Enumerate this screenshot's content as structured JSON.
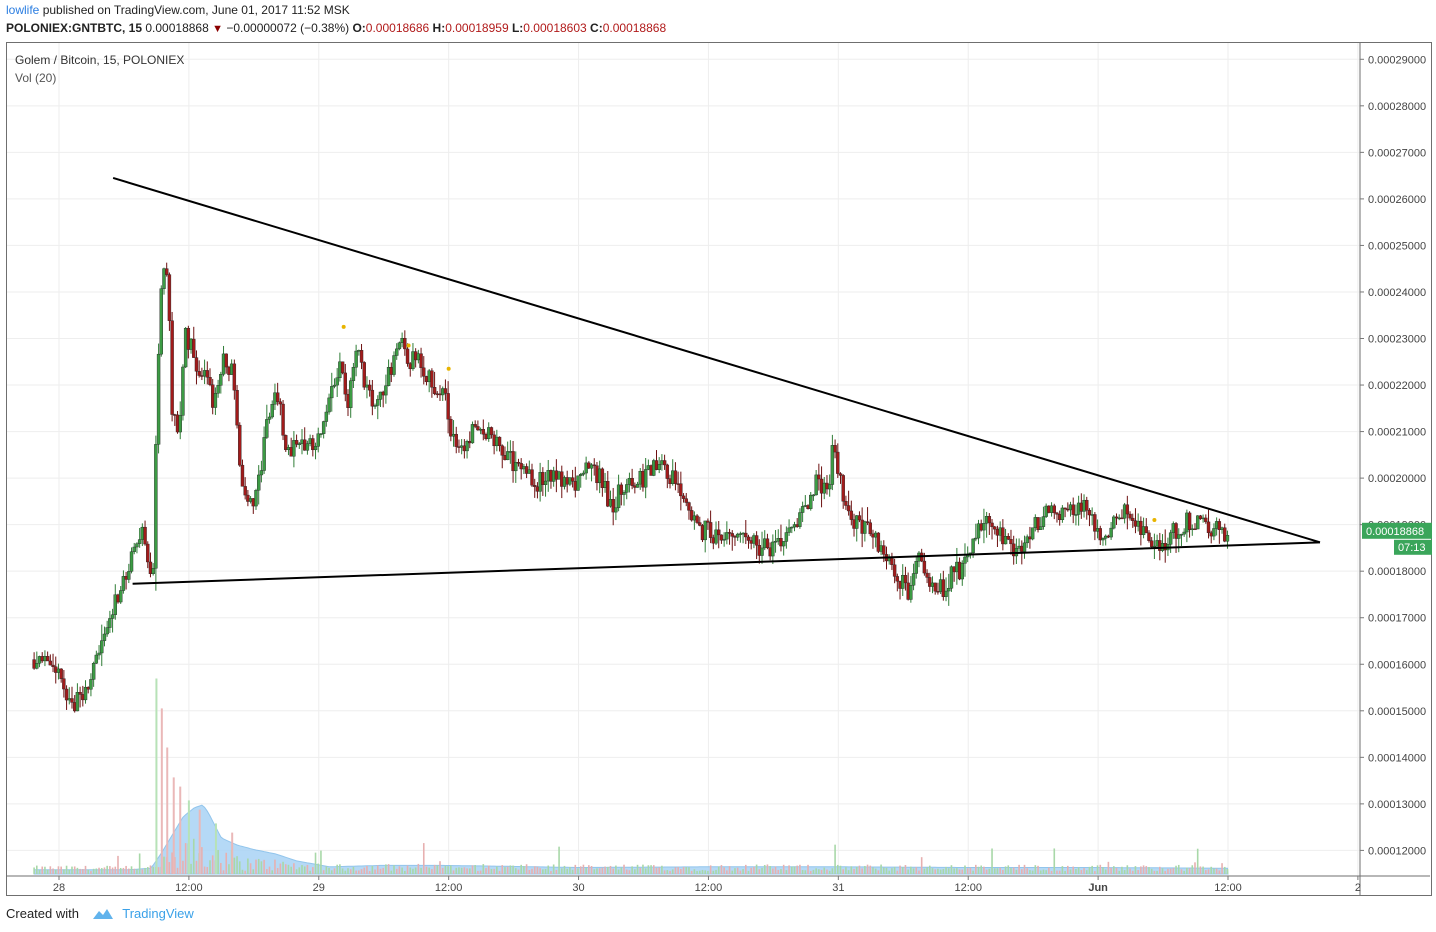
{
  "header": {
    "author": "lowlife",
    "published": "published on TradingView.com, June 01, 2017 11:52 MSK",
    "symbol": "POLONIEX:GNTBTC, 15",
    "last": "0.00018868",
    "change": "−0.00000072 (−0.38%)",
    "o_label": "O:",
    "o": "0.00018686",
    "h_label": "H:",
    "h": "0.00018959",
    "l_label": "L:",
    "l": "0.00018603",
    "c_label": "C:",
    "c": "0.00018868"
  },
  "footer": {
    "created_with": "Created with",
    "brand": "TradingView"
  },
  "chart_data": {
    "type": "candlestick",
    "title": "Golem / Bitcoin, 15, POLONIEX",
    "indicator": "Vol (20)",
    "y_ticks": [
      "0.00012000",
      "0.00013000",
      "0.00014000",
      "0.00015000",
      "0.00016000",
      "0.00017000",
      "0.00018000",
      "0.00019000",
      "0.00020000",
      "0.00021000",
      "0.00022000",
      "0.00023000",
      "0.00024000",
      "0.00025000",
      "0.00026000",
      "0.00027000",
      "0.00028000",
      "0.00029000"
    ],
    "x_ticks": [
      {
        "label": "28",
        "t": 0
      },
      {
        "label": "12:00",
        "t": 12
      },
      {
        "label": "29",
        "t": 24
      },
      {
        "label": "12:00",
        "t": 36
      },
      {
        "label": "30",
        "t": 48
      },
      {
        "label": "12:00",
        "t": 60
      },
      {
        "label": "31",
        "t": 72
      },
      {
        "label": "12:00",
        "t": 84
      },
      {
        "label": "Jun",
        "t": 96
      },
      {
        "label": "12:00",
        "t": 108
      },
      {
        "label": "2",
        "t": 120
      }
    ],
    "ylim": [
      0.0001145,
      0.0002935
    ],
    "price_keypoints": [
      [
        -2.3,
        0.000161
      ],
      [
        -1.0,
        0.000159
      ],
      [
        0,
        0.000158
      ],
      [
        0.5,
        0.000153
      ],
      [
        1.2,
        0.0001505
      ],
      [
        1.8,
        0.000152
      ],
      [
        2.5,
        0.000156
      ],
      [
        3.5,
        0.00016
      ],
      [
        4.5,
        0.000168
      ],
      [
        5.5,
        0.000176
      ],
      [
        6.5,
        0.00018
      ],
      [
        7.3,
        0.000188
      ],
      [
        8.0,
        0.000187
      ],
      [
        8.4,
        0.00018
      ],
      [
        8.8,
        0.000186
      ],
      [
        9.2,
        0.00023
      ],
      [
        9.6,
        0.00025
      ],
      [
        10.0,
        0.00024
      ],
      [
        10.5,
        0.000215
      ],
      [
        11.0,
        0.000205
      ],
      [
        11.5,
        0.000225
      ],
      [
        12.0,
        0.000232
      ],
      [
        12.8,
        0.00022
      ],
      [
        13.5,
        0.000225
      ],
      [
        14.3,
        0.000215
      ],
      [
        15.0,
        0.000225
      ],
      [
        16.0,
        0.000223
      ],
      [
        16.8,
        0.0002
      ],
      [
        17.8,
        0.000195
      ],
      [
        18.5,
        0.0002
      ],
      [
        19.5,
        0.000215
      ],
      [
        20.2,
        0.000218
      ],
      [
        21.0,
        0.000205
      ],
      [
        22.0,
        0.000208
      ],
      [
        23.0,
        0.000208
      ],
      [
        24.0,
        0.000208
      ],
      [
        25.0,
        0.00022
      ],
      [
        26.0,
        0.000223
      ],
      [
        26.7,
        0.000215
      ],
      [
        27.5,
        0.000228
      ],
      [
        28.5,
        0.000218
      ],
      [
        29.5,
        0.000215
      ],
      [
        30.5,
        0.000223
      ],
      [
        31.5,
        0.00023
      ],
      [
        32.5,
        0.000225
      ],
      [
        33.5,
        0.000225
      ],
      [
        34.5,
        0.00022
      ],
      [
        35.5,
        0.00022
      ],
      [
        36.3,
        0.00021
      ],
      [
        37.0,
        0.000205
      ],
      [
        38.0,
        0.00021
      ],
      [
        39.0,
        0.000212
      ],
      [
        40.0,
        0.000208
      ],
      [
        41.0,
        0.000205
      ],
      [
        42.0,
        0.000203
      ],
      [
        43.0,
        0.000204
      ],
      [
        44.0,
        0.000199
      ],
      [
        45.0,
        0.000201
      ],
      [
        46.0,
        0.000199
      ],
      [
        47.0,
        0.0002
      ],
      [
        48.0,
        0.000199
      ],
      [
        49.0,
        0.000203
      ],
      [
        50.0,
        0.0002
      ],
      [
        51.0,
        0.000194
      ],
      [
        52.0,
        0.000198
      ],
      [
        53.0,
        0.000199
      ],
      [
        54.0,
        0.0002
      ],
      [
        55.0,
        0.000203
      ],
      [
        56.0,
        0.000202
      ],
      [
        57.0,
        0.000199
      ],
      [
        58.0,
        0.000194
      ],
      [
        59.0,
        0.000188
      ],
      [
        60.0,
        0.000189
      ],
      [
        61.0,
        0.000186
      ],
      [
        62.0,
        0.000188
      ],
      [
        63.0,
        0.000188
      ],
      [
        64.0,
        0.000186
      ],
      [
        65.0,
        0.000185
      ],
      [
        66.0,
        0.000184
      ],
      [
        67.0,
        0.000186
      ],
      [
        68.0,
        0.000189
      ],
      [
        69.0,
        0.000193
      ],
      [
        70.0,
        0.000199
      ],
      [
        71.0,
        0.000198
      ],
      [
        71.5,
        0.000208
      ],
      [
        72.0,
        0.000199
      ],
      [
        72.8,
        0.000194
      ],
      [
        73.5,
        0.00019
      ],
      [
        74.5,
        0.000189
      ],
      [
        75.5,
        0.000186
      ],
      [
        76.5,
        0.000183
      ],
      [
        77.5,
        0.000178
      ],
      [
        78.5,
        0.000176
      ],
      [
        79.5,
        0.000182
      ],
      [
        80.5,
        0.000178
      ],
      [
        81.5,
        0.000176
      ],
      [
        82.5,
        0.000179
      ],
      [
        83.5,
        0.000181
      ],
      [
        84.5,
        0.000185
      ],
      [
        85.5,
        0.000192
      ],
      [
        86.5,
        0.000188
      ],
      [
        87.5,
        0.000186
      ],
      [
        88.5,
        0.000184
      ],
      [
        89.5,
        0.000188
      ],
      [
        90.5,
        0.00019
      ],
      [
        91.5,
        0.000193
      ],
      [
        92.5,
        0.000193
      ],
      [
        93.5,
        0.000194
      ],
      [
        94.5,
        0.000194
      ],
      [
        95.5,
        0.000192
      ],
      [
        96.0,
        0.000188
      ],
      [
        96.7,
        0.000186
      ],
      [
        97.5,
        0.00019
      ],
      [
        98.5,
        0.000193
      ],
      [
        99.5,
        0.000189
      ],
      [
        100.5,
        0.000187
      ],
      [
        101.5,
        0.000186
      ],
      [
        102.5,
        0.000187
      ],
      [
        103.5,
        0.00019
      ],
      [
        104.5,
        0.000191
      ],
      [
        105.5,
        0.00019
      ],
      [
        106.5,
        0.000189
      ],
      [
        107.5,
        0.000188
      ],
      [
        108.0,
        0.0001887
      ]
    ],
    "volume_area_keypoints": [
      [
        -2.3,
        0.06
      ],
      [
        6.5,
        0.06
      ],
      [
        8.5,
        0.08
      ],
      [
        9.5,
        0.3
      ],
      [
        10.5,
        0.55
      ],
      [
        11.5,
        0.8
      ],
      [
        12.5,
        0.92
      ],
      [
        13.3,
        0.96
      ],
      [
        13.8,
        0.85
      ],
      [
        15.0,
        0.5
      ],
      [
        16.5,
        0.4
      ],
      [
        18.0,
        0.34
      ],
      [
        20.0,
        0.28
      ],
      [
        22.0,
        0.18
      ],
      [
        25.0,
        0.1
      ],
      [
        30.0,
        0.12
      ],
      [
        35.0,
        0.12
      ],
      [
        40.0,
        0.11
      ],
      [
        48.0,
        0.09
      ],
      [
        60.0,
        0.1
      ],
      [
        72.0,
        0.1
      ],
      [
        84.0,
        0.09
      ],
      [
        96.0,
        0.09
      ],
      [
        108.0,
        0.08
      ]
    ],
    "volume_spikes": [
      [
        9.0,
        0.85,
        "g"
      ],
      [
        9.5,
        0.72,
        "r"
      ],
      [
        10.0,
        0.55,
        "r"
      ],
      [
        10.6,
        0.42,
        "r"
      ],
      [
        11.2,
        0.38,
        "r"
      ],
      [
        12.0,
        0.32,
        "g"
      ],
      [
        13.0,
        0.28,
        "r"
      ],
      [
        14.5,
        0.22,
        "g"
      ],
      [
        16.0,
        0.18,
        "r"
      ]
    ],
    "trendlines": [
      {
        "from": [
          5.0,
          0.0002645
        ],
        "to": [
          116.5,
          0.0001862
        ]
      },
      {
        "from": [
          6.8,
          0.0001773
        ],
        "to": [
          116.5,
          0.0001862
        ]
      }
    ],
    "markers": [
      {
        "t": 26.3,
        "price": 0.0002325
      },
      {
        "t": 32.3,
        "price": 0.0002285
      },
      {
        "t": 36.0,
        "price": 0.0002235
      },
      {
        "t": 101.2,
        "price": 0.000191
      }
    ],
    "last_price_label": "0.00018868",
    "countdown_label": "07:13",
    "last_price_color": "#3aa55a"
  }
}
